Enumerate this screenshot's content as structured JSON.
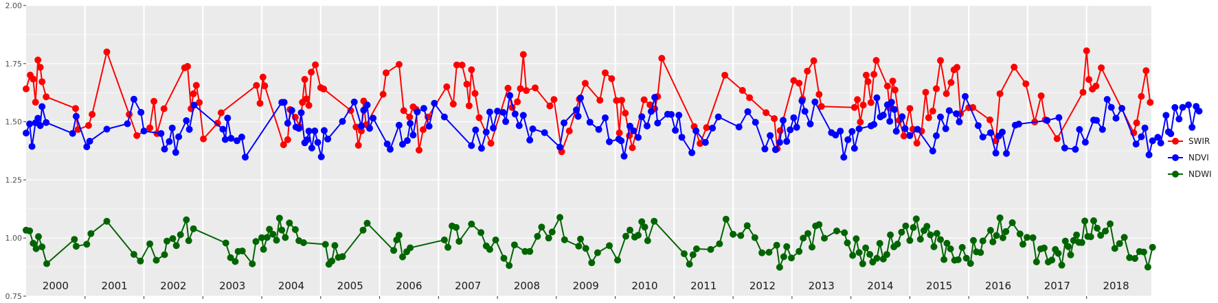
{
  "chart_data": {
    "type": "line",
    "title": "",
    "xlabel": "",
    "ylabel": "",
    "ylim": [
      0.75,
      2.0
    ],
    "y_ticks": [
      "0.75",
      "1.00",
      "1.25",
      "1.50",
      "1.75",
      "2.00"
    ],
    "x_range": [
      2000.0,
      2019.1
    ],
    "year_labels": [
      "2000",
      "2001",
      "2002",
      "2003",
      "2004",
      "2005",
      "2006",
      "2007",
      "2008",
      "2009",
      "2010",
      "2011",
      "2012",
      "2013",
      "2014",
      "2015",
      "2016",
      "2017",
      "2018"
    ],
    "grid": true,
    "legend_position": "right",
    "legend": [
      "SWIR",
      "NDVI",
      "NDWI"
    ],
    "series": [
      {
        "name": "SWIR",
        "color": "#ff0000",
        "x": [
          2000.0,
          2000.07,
          2000.12,
          2000.16,
          2000.2,
          2000.24,
          2000.27,
          2000.34,
          2000.84,
          2000.88,
          2001.06,
          2001.12,
          2001.37,
          2001.75,
          2001.88,
          2002.1,
          2002.17,
          2002.22,
          2002.34,
          2002.69,
          2002.74,
          2002.8,
          2002.84,
          2002.89,
          2002.94,
          2003.01,
          2003.25,
          2003.31,
          2003.91,
          2003.97,
          2004.02,
          2004.05,
          2004.37,
          2004.44,
          2004.48,
          2004.57,
          2004.65,
          2004.69,
          2004.73,
          2004.76,
          2004.8,
          2004.84,
          2004.91,
          2005.0,
          2005.05,
          2005.51,
          2005.6,
          2005.64,
          2005.69,
          2005.73,
          2005.77,
          2006.06,
          2006.11,
          2006.33,
          2006.41,
          2006.51,
          2006.57,
          2006.62,
          2006.67,
          2006.74,
          2006.82,
          2007.14,
          2007.25,
          2007.31,
          2007.4,
          2007.48,
          2007.52,
          2007.56,
          2007.62,
          2007.69,
          2007.89,
          2008.18,
          2008.25,
          2008.34,
          2008.39,
          2008.44,
          2008.49,
          2008.64,
          2008.89,
          2008.96,
          2009.09,
          2009.22,
          2009.39,
          2009.49,
          2009.74,
          2009.83,
          2009.94,
          2010.02,
          2010.07,
          2010.11,
          2010.17,
          2010.24,
          2010.29,
          2010.49,
          2010.59,
          2010.67,
          2010.72,
          2010.79,
          2011.34,
          2011.44,
          2011.55,
          2011.86,
          2012.16,
          2012.28,
          2012.56,
          2012.7,
          2012.75,
          2012.8,
          2013.03,
          2013.12,
          2013.18,
          2013.26,
          2013.37,
          2013.46,
          2013.5,
          2014.06,
          2014.11,
          2014.16,
          2014.21,
          2014.26,
          2014.29,
          2014.34,
          2014.39,
          2014.43,
          2014.62,
          2014.66,
          2014.71,
          2014.75,
          2014.82,
          2014.9,
          2015.0,
          2015.05,
          2015.12,
          2015.2,
          2015.27,
          2015.32,
          2015.39,
          2015.45,
          2015.52,
          2015.62,
          2015.7,
          2015.75,
          2015.8,
          2015.86,
          2016.0,
          2016.07,
          2016.36,
          2016.46,
          2016.53,
          2016.77,
          2016.97,
          2017.12,
          2017.23,
          2017.3,
          2017.5,
          2017.94,
          2018.0,
          2018.04,
          2018.1,
          2018.16,
          2018.25,
          2018.8,
          2018.85,
          2018.93,
          2019.01,
          2019.08
        ]
      },
      {
        "name": "NDVI",
        "color": "#0000ff",
        "x": [
          2000.0,
          2000.06,
          2000.1,
          2000.16,
          2000.2,
          2000.24,
          2000.27,
          2000.34,
          2000.79,
          2000.85,
          2001.03,
          2001.08,
          2001.37,
          2001.72,
          2001.83,
          2001.95,
          2002.0,
          2002.29,
          2002.35,
          2002.43,
          2002.48,
          2002.54,
          2002.59,
          2002.72,
          2002.77,
          2002.85,
          2003.34,
          2003.38,
          2003.42,
          2003.48,
          2003.58,
          2003.66,
          2003.72,
          2004.34,
          2004.38,
          2004.44,
          2004.51,
          2004.58,
          2004.63,
          2004.67,
          2004.73,
          2004.77,
          2004.8,
          2004.85,
          2004.9,
          2004.95,
          2005.01,
          2005.06,
          2005.12,
          2005.37,
          2005.57,
          2005.69,
          2005.73,
          2005.79,
          2005.83,
          2005.89,
          2006.13,
          2006.18,
          2006.33,
          2006.39,
          2006.47,
          2006.52,
          2006.57,
          2006.64,
          2006.75,
          2006.84,
          2006.93,
          2007.1,
          2007.56,
          2007.63,
          2007.73,
          2007.81,
          2007.87,
          2007.93,
          2008.0,
          2008.1,
          2008.14,
          2008.21,
          2008.3,
          2008.37,
          2008.44,
          2008.55,
          2008.6,
          2008.8,
          2009.06,
          2009.13,
          2009.34,
          2009.37,
          2009.41,
          2009.57,
          2009.72,
          2009.83,
          2009.9,
          2010.06,
          2010.1,
          2010.15,
          2010.25,
          2010.31,
          2010.39,
          2010.45,
          2010.54,
          2010.61,
          2010.67,
          2010.72,
          2010.89,
          2010.95,
          2011.02,
          2011.08,
          2011.13,
          2011.3,
          2011.37,
          2011.53,
          2011.65,
          2011.75,
          2012.1,
          2012.25,
          2012.38,
          2012.54,
          2012.63,
          2012.72,
          2012.79,
          2012.85,
          2012.91,
          2012.97,
          2013.03,
          2013.08,
          2013.17,
          2013.22,
          2013.31,
          2013.39,
          2013.67,
          2013.74,
          2013.82,
          2013.88,
          2013.95,
          2014.02,
          2014.06,
          2014.14,
          2014.34,
          2014.39,
          2014.44,
          2014.5,
          2014.55,
          2014.62,
          2014.66,
          2014.69,
          2014.74,
          2014.77,
          2014.87,
          2014.92,
          2015.0,
          2015.13,
          2015.39,
          2015.45,
          2015.52,
          2015.61,
          2015.67,
          2015.79,
          2015.84,
          2015.94,
          2016.16,
          2016.24,
          2016.37,
          2016.46,
          2016.51,
          2016.57,
          2016.64,
          2016.79,
          2016.85,
          2017.33,
          2017.53,
          2017.63,
          2017.81,
          2017.88,
          2017.98,
          2018.12,
          2018.17,
          2018.27,
          2018.35,
          2018.42,
          2018.5,
          2018.6,
          2018.84,
          2018.93,
          2018.99,
          2019.06,
          2019.12,
          2019.21,
          2019.26,
          2019.35,
          2019.39,
          2019.43,
          2019.5,
          2019.57,
          2019.63,
          2019.73,
          2019.79,
          2019.86,
          2019.91
        ]
      },
      {
        "name": "NDWI",
        "color": "#006400",
        "x": [
          2000.0,
          2000.06,
          2000.12,
          2000.17,
          2000.21,
          2000.27,
          2000.35,
          2000.82,
          2000.85,
          2001.03,
          2001.1,
          2001.37,
          2001.83,
          2001.94,
          2002.1,
          2002.21,
          2002.35,
          2002.39,
          2002.49,
          2002.55,
          2002.62,
          2002.72,
          2002.76,
          2002.84,
          2003.39,
          2003.47,
          2003.55,
          2003.6,
          2003.67,
          2003.84,
          2003.9,
          2004.0,
          2004.03,
          2004.09,
          2004.13,
          2004.19,
          2004.25,
          2004.3,
          2004.34,
          2004.4,
          2004.47,
          2004.57,
          2004.63,
          2004.71,
          2005.08,
          2005.14,
          2005.19,
          2005.24,
          2005.3,
          2005.37,
          2005.72,
          2005.79,
          2006.24,
          2006.29,
          2006.33,
          2006.39,
          2006.46,
          2006.52,
          2007.1,
          2007.16,
          2007.23,
          2007.3,
          2007.35,
          2007.56,
          2007.72,
          2007.81,
          2007.87,
          2007.97,
          2008.11,
          2008.2,
          2008.29,
          2008.47,
          2008.55,
          2008.68,
          2008.75,
          2008.87,
          2008.93,
          2009.06,
          2009.14,
          2009.38,
          2009.41,
          2009.5,
          2009.6,
          2009.7,
          2009.9,
          2010.04,
          2010.18,
          2010.25,
          2010.33,
          2010.39,
          2010.45,
          2010.5,
          2010.55,
          2010.66,
          2011.17,
          2011.26,
          2011.32,
          2011.38,
          2011.62,
          2011.77,
          2011.88,
          2012.0,
          2012.13,
          2012.24,
          2012.37,
          2012.49,
          2012.61,
          2012.74,
          2012.79,
          2012.86,
          2012.91,
          2012.99,
          2013.12,
          2013.19,
          2013.27,
          2013.34,
          2013.4,
          2013.46,
          2013.55,
          2013.76,
          2013.89,
          2013.94,
          2014.03,
          2014.09,
          2014.14,
          2014.2,
          2014.25,
          2014.32,
          2014.37,
          2014.44,
          2014.49,
          2014.55,
          2014.61,
          2014.67,
          2014.73,
          2014.79,
          2014.86,
          2014.93,
          2015.0,
          2015.06,
          2015.11,
          2015.18,
          2015.24,
          2015.29,
          2015.35,
          2015.41,
          2015.46,
          2015.52,
          2015.58,
          2015.63,
          2015.69,
          2015.76,
          2015.82,
          2015.89,
          2015.96,
          2016.03,
          2016.08,
          2016.13,
          2016.2,
          2016.24,
          2016.37,
          2016.41,
          2016.47,
          2016.53,
          2016.58,
          2016.63,
          2016.74,
          2016.87,
          2016.92,
          2016.99,
          2017.09,
          2017.15,
          2017.22,
          2017.28,
          2017.35,
          2017.41,
          2017.47,
          2017.52,
          2017.58,
          2017.64,
          2017.69,
          2017.73,
          2017.78,
          2017.83,
          2017.87,
          2017.92,
          2017.97,
          2018.02,
          2018.07,
          2018.12,
          2018.18,
          2018.24,
          2018.32,
          2018.4,
          2018.48,
          2018.56,
          2018.64,
          2018.73,
          2018.82,
          2018.9,
          2018.97,
          2019.04,
          2019.12
        ]
      }
    ]
  }
}
